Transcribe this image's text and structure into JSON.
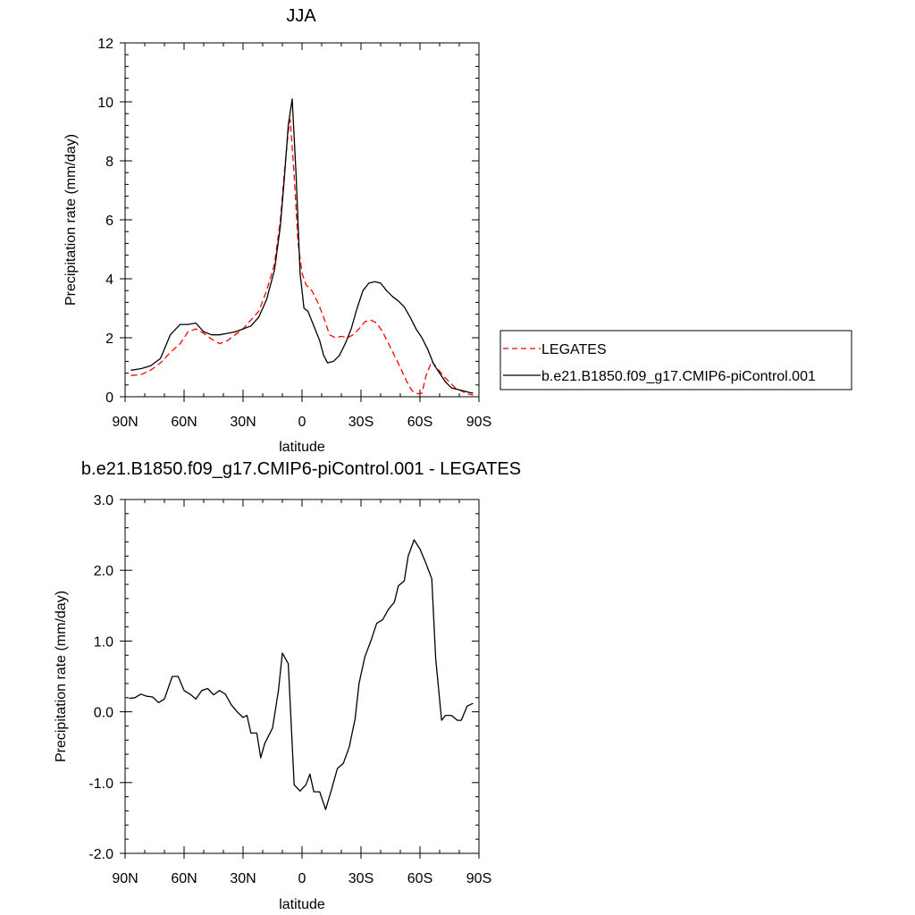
{
  "chart_data": [
    {
      "type": "line",
      "title": "JJA",
      "xlabel": "latitude",
      "ylabel": "Precipitation rate (mm/day)",
      "x_ticks": [
        {
          "value": -90,
          "label": "90N"
        },
        {
          "value": -60,
          "label": "60N"
        },
        {
          "value": -30,
          "label": "30N"
        },
        {
          "value": 0,
          "label": "0"
        },
        {
          "value": 30,
          "label": "30S"
        },
        {
          "value": 60,
          "label": "60S"
        },
        {
          "value": 90,
          "label": "90S"
        }
      ],
      "xlim": [
        -90,
        90
      ],
      "ylim": [
        0,
        12
      ],
      "y_ticks": [
        {
          "value": 0,
          "label": "0"
        },
        {
          "value": 2,
          "label": "2"
        },
        {
          "value": 4,
          "label": "4"
        },
        {
          "value": 6,
          "label": "6"
        },
        {
          "value": 8,
          "label": "8"
        },
        {
          "value": 10,
          "label": "10"
        },
        {
          "value": 12,
          "label": "12"
        }
      ],
      "legend_position": "right",
      "series": [
        {
          "name": "LEGATES",
          "color": "#ff0000",
          "dash": true,
          "points": [
            [
              -87,
              0.72
            ],
            [
              -82,
              0.75
            ],
            [
              -77,
              0.9
            ],
            [
              -72,
              1.15
            ],
            [
              -67,
              1.5
            ],
            [
              -62,
              1.8
            ],
            [
              -58,
              2.2
            ],
            [
              -54,
              2.3
            ],
            [
              -50,
              2.15
            ],
            [
              -46,
              1.95
            ],
            [
              -42,
              1.8
            ],
            [
              -38,
              1.9
            ],
            [
              -34,
              2.1
            ],
            [
              -30,
              2.3
            ],
            [
              -26,
              2.6
            ],
            [
              -22,
              2.9
            ],
            [
              -18,
              3.6
            ],
            [
              -14,
              4.5
            ],
            [
              -11,
              6.0
            ],
            [
              -9,
              7.6
            ],
            [
              -7,
              9.0
            ],
            [
              -6,
              9.4
            ],
            [
              -4,
              7.5
            ],
            [
              -2,
              5.2
            ],
            [
              0,
              4.2
            ],
            [
              2,
              3.8
            ],
            [
              5,
              3.6
            ],
            [
              8,
              3.2
            ],
            [
              11,
              2.7
            ],
            [
              14,
              2.1
            ],
            [
              17,
              2.0
            ],
            [
              20,
              2.05
            ],
            [
              23,
              2.0
            ],
            [
              26,
              2.1
            ],
            [
              29,
              2.3
            ],
            [
              32,
              2.55
            ],
            [
              35,
              2.6
            ],
            [
              38,
              2.5
            ],
            [
              41,
              2.2
            ],
            [
              44,
              1.8
            ],
            [
              47,
              1.4
            ],
            [
              50,
              1.0
            ],
            [
              53,
              0.55
            ],
            [
              56,
              0.2
            ],
            [
              59,
              0.1
            ],
            [
              61,
              0.12
            ],
            [
              63,
              0.7
            ],
            [
              66,
              1.2
            ],
            [
              69,
              0.95
            ],
            [
              72,
              0.7
            ],
            [
              75,
              0.5
            ],
            [
              78,
              0.3
            ],
            [
              81,
              0.2
            ],
            [
              84,
              0.1
            ],
            [
              87,
              0.06
            ]
          ]
        },
        {
          "name": "b.e21.B1850.f09_g17.CMIP6-piControl.001",
          "color": "#000000",
          "dash": false,
          "points": [
            [
              -87,
              0.9
            ],
            [
              -82,
              0.95
            ],
            [
              -77,
              1.05
            ],
            [
              -72,
              1.3
            ],
            [
              -67,
              2.1
            ],
            [
              -62,
              2.45
            ],
            [
              -58,
              2.45
            ],
            [
              -54,
              2.5
            ],
            [
              -50,
              2.2
            ],
            [
              -46,
              2.1
            ],
            [
              -42,
              2.1
            ],
            [
              -38,
              2.15
            ],
            [
              -34,
              2.2
            ],
            [
              -30,
              2.3
            ],
            [
              -26,
              2.4
            ],
            [
              -22,
              2.7
            ],
            [
              -18,
              3.3
            ],
            [
              -14,
              4.3
            ],
            [
              -11,
              5.8
            ],
            [
              -9,
              7.4
            ],
            [
              -7,
              9.2
            ],
            [
              -5,
              10.1
            ],
            [
              -3,
              7.5
            ],
            [
              -1,
              4.2
            ],
            [
              1,
              3.0
            ],
            [
              3,
              2.9
            ],
            [
              6,
              2.4
            ],
            [
              9,
              1.9
            ],
            [
              11,
              1.4
            ],
            [
              13,
              1.15
            ],
            [
              16,
              1.2
            ],
            [
              19,
              1.4
            ],
            [
              22,
              1.8
            ],
            [
              25,
              2.3
            ],
            [
              28,
              3.0
            ],
            [
              31,
              3.6
            ],
            [
              34,
              3.85
            ],
            [
              37,
              3.9
            ],
            [
              40,
              3.85
            ],
            [
              43,
              3.6
            ],
            [
              46,
              3.4
            ],
            [
              49,
              3.25
            ],
            [
              52,
              3.05
            ],
            [
              55,
              2.7
            ],
            [
              58,
              2.3
            ],
            [
              61,
              2.0
            ],
            [
              64,
              1.6
            ],
            [
              67,
              1.1
            ],
            [
              70,
              0.8
            ],
            [
              73,
              0.5
            ],
            [
              76,
              0.3
            ],
            [
              79,
              0.25
            ],
            [
              82,
              0.2
            ],
            [
              85,
              0.15
            ],
            [
              87,
              0.12
            ]
          ]
        }
      ]
    },
    {
      "type": "line",
      "title": "b.e21.B1850.f09_g17.CMIP6-piControl.001 - LEGATES",
      "xlabel": "latitude",
      "ylabel": "Precipitation rate (mm/day)",
      "x_ticks": [
        {
          "value": -90,
          "label": "90N"
        },
        {
          "value": -60,
          "label": "60N"
        },
        {
          "value": -30,
          "label": "30N"
        },
        {
          "value": 0,
          "label": "0"
        },
        {
          "value": 30,
          "label": "30S"
        },
        {
          "value": 60,
          "label": "60S"
        },
        {
          "value": 90,
          "label": "90S"
        }
      ],
      "xlim": [
        -90,
        90
      ],
      "ylim": [
        -2,
        3
      ],
      "y_ticks": [
        {
          "value": -2,
          "label": "-2.0"
        },
        {
          "value": -1,
          "label": "-1.0"
        },
        {
          "value": 0,
          "label": "0.0"
        },
        {
          "value": 1,
          "label": "1.0"
        },
        {
          "value": 2,
          "label": "2.0"
        },
        {
          "value": 3,
          "label": "3.0"
        }
      ],
      "series": [
        {
          "color": "#000000",
          "dash": false,
          "points": [
            [
              -88,
              0.19
            ],
            [
              -85,
              0.2
            ],
            [
              -82,
              0.25
            ],
            [
              -79,
              0.22
            ],
            [
              -76,
              0.21
            ],
            [
              -73,
              0.13
            ],
            [
              -70,
              0.18
            ],
            [
              -66,
              0.5
            ],
            [
              -63,
              0.5
            ],
            [
              -60,
              0.3
            ],
            [
              -57,
              0.25
            ],
            [
              -54,
              0.18
            ],
            [
              -51,
              0.3
            ],
            [
              -48,
              0.33
            ],
            [
              -45,
              0.24
            ],
            [
              -42,
              0.3
            ],
            [
              -39,
              0.25
            ],
            [
              -36,
              0.1
            ],
            [
              -33,
              0.0
            ],
            [
              -30,
              -0.08
            ],
            [
              -28,
              -0.05
            ],
            [
              -26,
              -0.3
            ],
            [
              -23,
              -0.3
            ],
            [
              -21,
              -0.65
            ],
            [
              -19,
              -0.45
            ],
            [
              -15,
              -0.23
            ],
            [
              -12,
              0.3
            ],
            [
              -10,
              0.83
            ],
            [
              -7,
              0.68
            ],
            [
              -4,
              -1.03
            ],
            [
              -1,
              -1.12
            ],
            [
              2,
              -1.03
            ],
            [
              4,
              -0.88
            ],
            [
              6,
              -1.13
            ],
            [
              9,
              -1.13
            ],
            [
              12,
              -1.38
            ],
            [
              15,
              -1.1
            ],
            [
              18,
              -0.8
            ],
            [
              21,
              -0.73
            ],
            [
              24,
              -0.5
            ],
            [
              27,
              -0.1
            ],
            [
              29,
              0.4
            ],
            [
              32,
              0.78
            ],
            [
              35,
              1.0
            ],
            [
              38,
              1.25
            ],
            [
              41,
              1.3
            ],
            [
              44,
              1.45
            ],
            [
              47,
              1.55
            ],
            [
              49,
              1.78
            ],
            [
              52,
              1.85
            ],
            [
              54,
              2.2
            ],
            [
              57,
              2.43
            ],
            [
              60,
              2.3
            ],
            [
              63,
              2.1
            ],
            [
              66,
              1.88
            ],
            [
              68,
              0.75
            ],
            [
              71,
              -0.12
            ],
            [
              73,
              -0.05
            ],
            [
              76,
              -0.05
            ],
            [
              79,
              -0.12
            ],
            [
              81,
              -0.12
            ],
            [
              84,
              0.08
            ],
            [
              87,
              0.12
            ]
          ]
        }
      ]
    }
  ]
}
